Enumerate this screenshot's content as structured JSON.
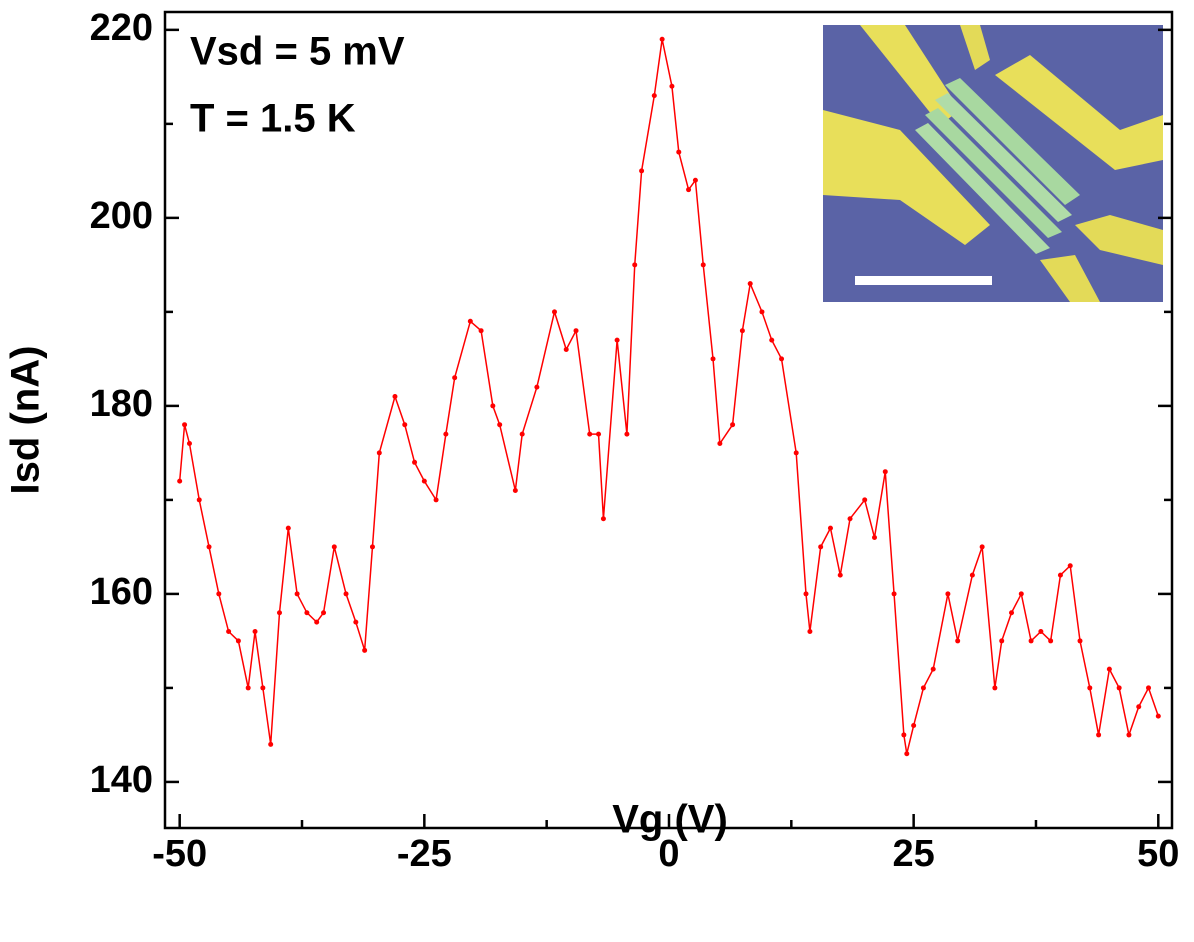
{
  "chart_data": {
    "type": "line",
    "xlabel": "Vg (V)",
    "ylabel": "Isd (nA)",
    "annotations": [
      "Vsd = 5 mV",
      "T = 1.5 K"
    ],
    "color": "#ff0000",
    "xlim": [
      -51.5,
      51.4
    ],
    "ylim": [
      135.1,
      221.9
    ],
    "xticks": [
      -50,
      -25,
      0,
      25,
      50
    ],
    "yticks": [
      140,
      160,
      180,
      200,
      220
    ],
    "xminorticks": [
      -37.5,
      -12.5,
      12.5,
      37.5
    ],
    "yminorticks": [
      150,
      170,
      190,
      210
    ],
    "x": [
      -50,
      -49.5,
      -49,
      -48,
      -47,
      -46,
      -45,
      -44,
      -43,
      -42.3,
      -41.5,
      -40.7,
      -39.8,
      -38.9,
      -38,
      -37,
      -36,
      -35.3,
      -34.2,
      -33,
      -32,
      -31.1,
      -30.3,
      -29.6,
      -28,
      -27,
      -26,
      -25,
      -23.8,
      -22.8,
      -21.9,
      -20.3,
      -19.2,
      -18,
      -17.3,
      -15.7,
      -15,
      -13.5,
      -11.7,
      -10.5,
      -9.5,
      -8.1,
      -7.2,
      -6.7,
      -5.3,
      -4.3,
      -3.5,
      -2.8,
      -1.5,
      -0.7,
      0.3,
      1,
      2,
      2.7,
      3.5,
      4.5,
      5.2,
      6.5,
      7.5,
      8.3,
      9.5,
      10.5,
      11.5,
      13,
      14,
      14.4,
      15.5,
      16.5,
      17.5,
      18.5,
      20,
      21,
      22.1,
      23,
      24,
      24.3,
      25,
      26,
      27,
      28.5,
      29.5,
      31,
      32,
      33.3,
      34,
      35,
      36,
      37,
      38,
      39,
      40,
      41,
      42,
      43,
      43.9,
      45,
      46,
      47,
      48,
      49,
      50
    ],
    "values": [
      172,
      178,
      176,
      170,
      165,
      160,
      156,
      155,
      150,
      156,
      150,
      144,
      158,
      167,
      160,
      158,
      157,
      158,
      165,
      160,
      157,
      154,
      165,
      175,
      181,
      178,
      174,
      172,
      170,
      177,
      183,
      189,
      188,
      180,
      178,
      171,
      177,
      182,
      190,
      186,
      188,
      177,
      177,
      168,
      187,
      177,
      195,
      205,
      213,
      219,
      214,
      207,
      203,
      204,
      195,
      185,
      176,
      178,
      188,
      193,
      190,
      187,
      185,
      175,
      160,
      156,
      165,
      167,
      162,
      168,
      170,
      166,
      173,
      160,
      145,
      143,
      146,
      150,
      152,
      160,
      155,
      162,
      165,
      150,
      155,
      158,
      160,
      155,
      156,
      155,
      162,
      163,
      155,
      150,
      145,
      152,
      150,
      145,
      148,
      150,
      147
    ]
  }
}
